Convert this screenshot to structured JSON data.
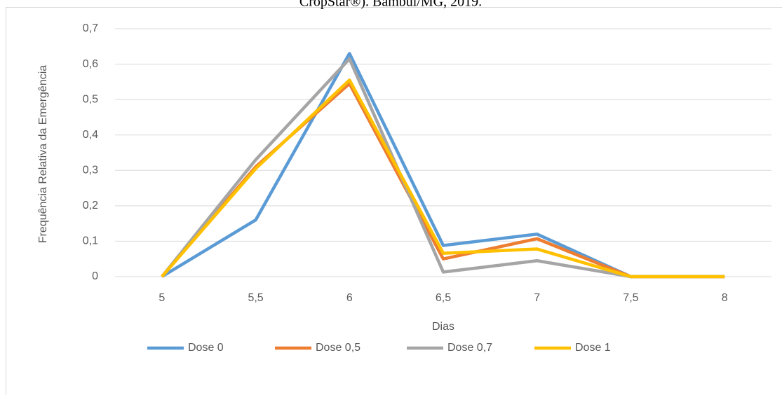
{
  "chart_data": {
    "type": "line",
    "title": "CropStar®). Bambuí/MG, 2019.",
    "x_label": "Dias",
    "y_label": "Frequência Relativa da Emergência",
    "categories": [
      "5",
      "5,5",
      "6",
      "6,5",
      "7",
      "7,5",
      "8"
    ],
    "series": [
      {
        "name": "Dose 0",
        "color": "#5b9bd5",
        "values": [
          0,
          0.16,
          0.63,
          0.088,
          0.12,
          0,
          0
        ]
      },
      {
        "name": "Dose 0,5",
        "color": "#ed7d31",
        "values": [
          0,
          0.31,
          0.545,
          0.05,
          0.107,
          0,
          0
        ]
      },
      {
        "name": "Dose 0,7",
        "color": "#a5a5a5",
        "values": [
          0,
          0.33,
          0.615,
          0.013,
          0.045,
          0,
          0
        ]
      },
      {
        "name": "Dose 1",
        "color": "#ffc000",
        "values": [
          0,
          0.305,
          0.555,
          0.066,
          0.078,
          0,
          0
        ]
      }
    ],
    "ylim": [
      0,
      0.7
    ],
    "yticks": [
      0,
      {
        "value": 0.1,
        "label": "0,1"
      },
      {
        "value": 0.2,
        "label": "0,2"
      },
      {
        "value": 0.3,
        "label": "0,3"
      },
      {
        "value": 0.4,
        "label": "0,4"
      },
      {
        "value": 0.5,
        "label": "0,5"
      },
      {
        "value": 0.6,
        "label": "0,6"
      },
      {
        "value": 0.7,
        "label": "0,7"
      }
    ],
    "grid": true,
    "legend": "bottom"
  }
}
